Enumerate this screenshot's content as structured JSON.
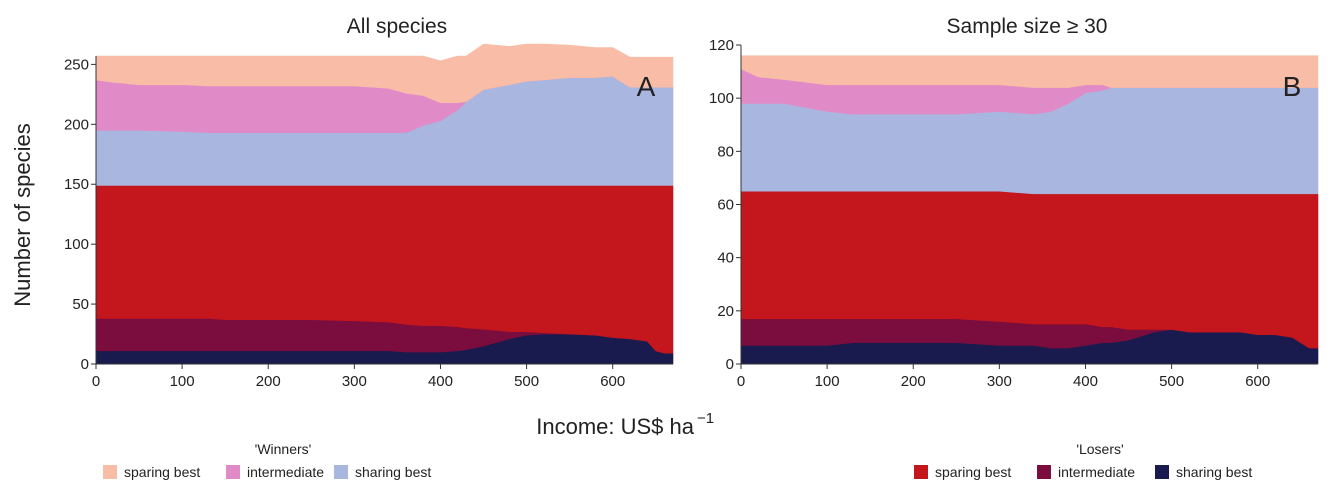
{
  "colors": {
    "winners_sparing": "#f9bca6",
    "winners_intermediate": "#e08ac8",
    "winners_sharing": "#a9b6df",
    "losers_sparing": "#c3161d",
    "losers_intermediate": "#7a0d3d",
    "losers_sharing": "#191b4e"
  },
  "shared": {
    "xlabel_main": "Income: US$ ha",
    "xlabel_sup": "−1",
    "ylabel": "Number of species"
  },
  "legend": {
    "winners_title": "'Winners'",
    "losers_title": "'Losers'",
    "labels": [
      "sparing best",
      "intermediate",
      "sharing best"
    ]
  },
  "chart_data": [
    {
      "type": "area",
      "stacked": true,
      "title": "All species",
      "panel": "A",
      "xlim": [
        0,
        670
      ],
      "ylim": [
        0,
        257
      ],
      "xticks": [
        0,
        100,
        200,
        300,
        400,
        500,
        600
      ],
      "yticks": [
        0,
        50,
        100,
        150,
        200,
        250
      ],
      "x": [
        0,
        20,
        50,
        100,
        130,
        150,
        200,
        250,
        300,
        340,
        360,
        380,
        400,
        420,
        430,
        450,
        480,
        500,
        520,
        550,
        580,
        600,
        620,
        640,
        650,
        660,
        670
      ],
      "series": [
        {
          "name": "sharing best",
          "group": "Losers",
          "values": [
            11,
            11,
            11,
            11,
            11,
            11,
            11,
            11,
            11,
            11,
            10,
            10,
            10,
            11,
            12,
            15,
            21,
            24,
            25,
            25,
            24,
            22,
            21,
            19,
            11,
            9,
            9
          ]
        },
        {
          "name": "intermediate",
          "group": "Losers",
          "values": [
            27,
            27,
            27,
            27,
            27,
            26,
            26,
            26,
            25,
            24,
            23,
            22,
            22,
            20,
            18,
            14,
            6,
            3,
            1,
            0,
            0,
            0,
            0,
            0,
            0,
            0,
            0
          ]
        },
        {
          "name": "sparing best",
          "group": "Losers",
          "values": [
            111,
            111,
            111,
            111,
            111,
            112,
            112,
            112,
            113,
            114,
            116,
            117,
            117,
            118,
            119,
            120,
            122,
            122,
            123,
            124,
            125,
            127,
            128,
            130,
            138,
            140,
            140
          ]
        },
        {
          "name": "sharing best",
          "group": "Winners",
          "values": [
            46,
            46,
            46,
            45,
            44,
            44,
            44,
            44,
            44,
            44,
            44,
            50,
            54,
            63,
            70,
            80,
            84,
            87,
            88,
            90,
            90,
            91,
            82,
            82,
            82,
            82,
            82
          ]
        },
        {
          "name": "intermediate",
          "group": "Winners",
          "values": [
            42,
            40,
            38,
            39,
            39,
            39,
            39,
            39,
            39,
            37,
            33,
            25,
            15,
            6,
            0,
            0,
            0,
            0,
            0,
            0,
            0,
            0,
            0,
            0,
            0,
            0,
            0
          ]
        },
        {
          "name": "sparing best",
          "group": "Winners",
          "values": [
            20,
            22,
            24,
            24,
            25,
            25,
            25,
            25,
            25,
            27,
            31,
            33,
            35,
            39,
            38,
            38,
            32,
            31,
            30,
            27,
            25,
            24,
            25,
            25,
            25,
            25,
            25
          ]
        }
      ]
    },
    {
      "type": "area",
      "stacked": true,
      "title": "Sample size ≥ 30",
      "panel": "B",
      "xlim": [
        0,
        670
      ],
      "ylim": [
        0,
        120
      ],
      "xticks": [
        0,
        100,
        200,
        300,
        400,
        500,
        600
      ],
      "yticks": [
        0,
        20,
        40,
        60,
        80,
        100,
        120
      ],
      "x": [
        0,
        20,
        50,
        100,
        130,
        150,
        200,
        250,
        300,
        340,
        360,
        380,
        400,
        420,
        430,
        450,
        480,
        500,
        520,
        550,
        580,
        600,
        620,
        640,
        650,
        660,
        670
      ],
      "series": [
        {
          "name": "sharing best",
          "group": "Losers",
          "values": [
            7,
            7,
            7,
            7,
            8,
            8,
            8,
            8,
            7,
            7,
            6,
            6,
            7,
            8,
            8,
            9,
            12,
            13,
            12,
            12,
            12,
            11,
            11,
            10,
            8,
            6,
            6
          ]
        },
        {
          "name": "intermediate",
          "group": "Losers",
          "values": [
            10,
            10,
            10,
            10,
            9,
            9,
            9,
            9,
            9,
            8,
            9,
            9,
            8,
            6,
            6,
            4,
            1,
            0,
            0,
            0,
            0,
            0,
            0,
            0,
            0,
            0,
            0
          ]
        },
        {
          "name": "sparing best",
          "group": "Losers",
          "values": [
            48,
            48,
            48,
            48,
            48,
            48,
            48,
            48,
            49,
            49,
            49,
            49,
            49,
            50,
            50,
            51,
            51,
            51,
            52,
            52,
            52,
            53,
            53,
            54,
            56,
            58,
            58
          ]
        },
        {
          "name": "sharing best",
          "group": "Winners",
          "values": [
            33,
            33,
            33,
            30,
            29,
            29,
            29,
            29,
            30,
            30,
            31,
            34,
            38,
            39,
            40,
            40,
            40,
            40,
            40,
            40,
            40,
            40,
            40,
            40,
            40,
            40,
            40
          ]
        },
        {
          "name": "intermediate",
          "group": "Winners",
          "values": [
            13,
            10,
            9,
            10,
            11,
            11,
            11,
            11,
            10,
            10,
            9,
            6,
            3,
            2,
            0,
            0,
            0,
            0,
            0,
            0,
            0,
            0,
            0,
            0,
            0,
            0,
            0
          ]
        },
        {
          "name": "sparing best",
          "group": "Winners",
          "values": [
            5,
            8,
            9,
            11,
            11,
            11,
            11,
            11,
            11,
            12,
            12,
            12,
            11,
            11,
            12,
            12,
            12,
            12,
            12,
            12,
            12,
            12,
            12,
            12,
            12,
            12,
            12
          ]
        }
      ]
    }
  ]
}
